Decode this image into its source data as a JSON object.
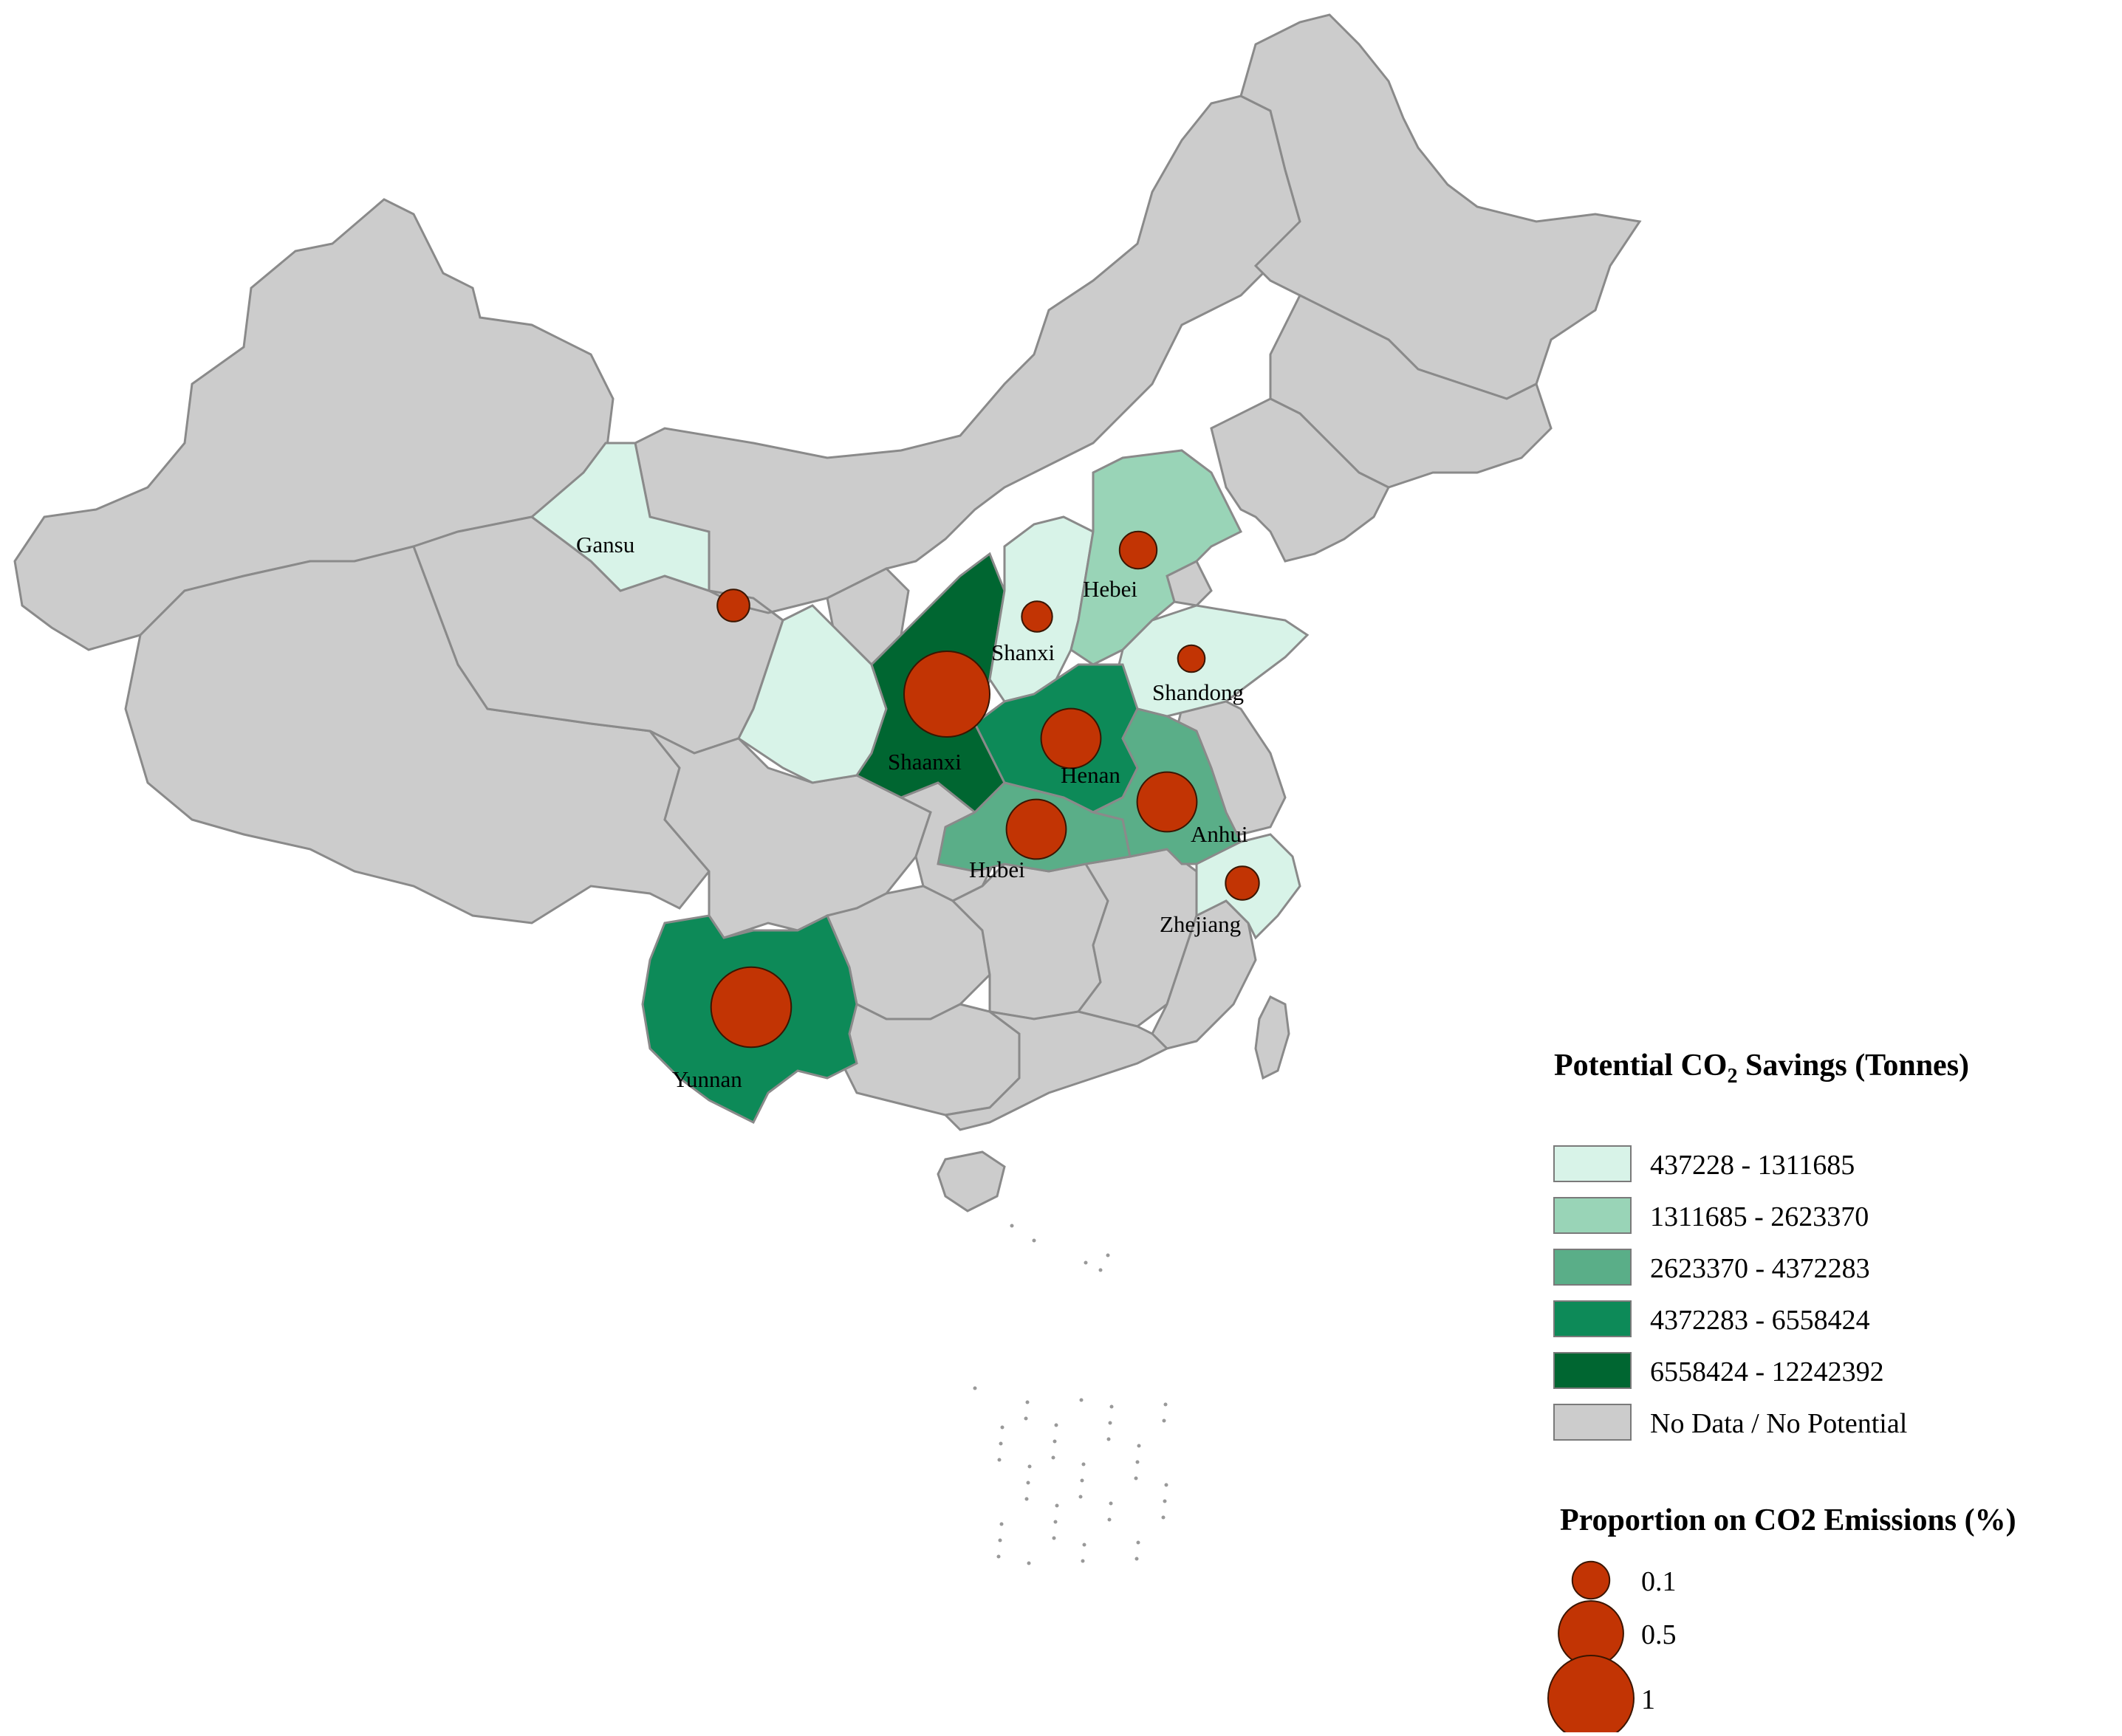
{
  "colors": {
    "no_data": "#cccccc",
    "border": "#8a8a8a",
    "marker_fill": "#c23404",
    "marker_stroke": "#3a1500"
  },
  "provinces": [
    {
      "name": "Gansu",
      "class": 1,
      "proportion": 0.06
    },
    {
      "name": "Shaanxi",
      "class": 5,
      "proportion": 1.0
    },
    {
      "name": "Shanxi",
      "class": 1,
      "proportion": 0.05
    },
    {
      "name": "Hebei",
      "class": 2,
      "proportion": 0.1
    },
    {
      "name": "Shandong",
      "class": 1,
      "proportion": 0.03
    },
    {
      "name": "Henan",
      "class": 4,
      "proportion": 0.4
    },
    {
      "name": "Hubei",
      "class": 3,
      "proportion": 0.4
    },
    {
      "name": "Anhui",
      "class": 3,
      "proportion": 0.4
    },
    {
      "name": "Zhejiang",
      "class": 1,
      "proportion": 0.07
    },
    {
      "name": "Yunnan",
      "class": 4,
      "proportion": 0.85
    }
  ],
  "legend_savings": {
    "title_prefix": "Potential CO",
    "title_subscript": "2",
    "title_suffix": " Savings (Tonnes)",
    "classes": [
      {
        "label": "437228 - 1311685",
        "color": "#d8f3e8"
      },
      {
        "label": "1311685 - 2623370",
        "color": "#99d4b7"
      },
      {
        "label": "2623370 - 4372283",
        "color": "#5aae88"
      },
      {
        "label": "4372283 - 6558424",
        "color": "#0d8a58"
      },
      {
        "label": "6558424 - 12242392",
        "color": "#006631"
      },
      {
        "label": "No Data / No Potential",
        "color": "#cccccc"
      }
    ]
  },
  "legend_proportion": {
    "title": "Proportion on CO2 Emissions (%)",
    "items": [
      {
        "label": "0.1",
        "value": 0.1
      },
      {
        "label": "0.5",
        "value": 0.5
      },
      {
        "label": "1",
        "value": 1
      }
    ]
  }
}
